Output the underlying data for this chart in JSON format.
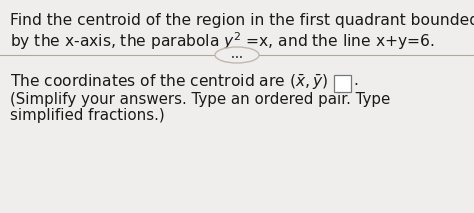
{
  "bg_color": "#f0eeec",
  "line1": "Find the centroid of the region in the first quadrant bounded",
  "line2": "by the x-axis, the parabola $y^{2}$ =x, and the line x+y=6.",
  "divider_text": "...",
  "bottom_line1_prefix": "The coordinates of the centroid are $\\mathbf{(\\bar{x},\\bar{y})}$ = ",
  "bottom_line1_plain": "The coordinates of the centroid are ",
  "bottom_line2": "(Simplify your answers. Type an ordered pair. Type",
  "bottom_line3": "simplified fractions.)",
  "font_size_main": 11.2,
  "font_size_small": 10.8,
  "text_color": "#1a1a1a",
  "divider_color": "#b0a8a0",
  "ellipse_color": "#c0b8b0"
}
